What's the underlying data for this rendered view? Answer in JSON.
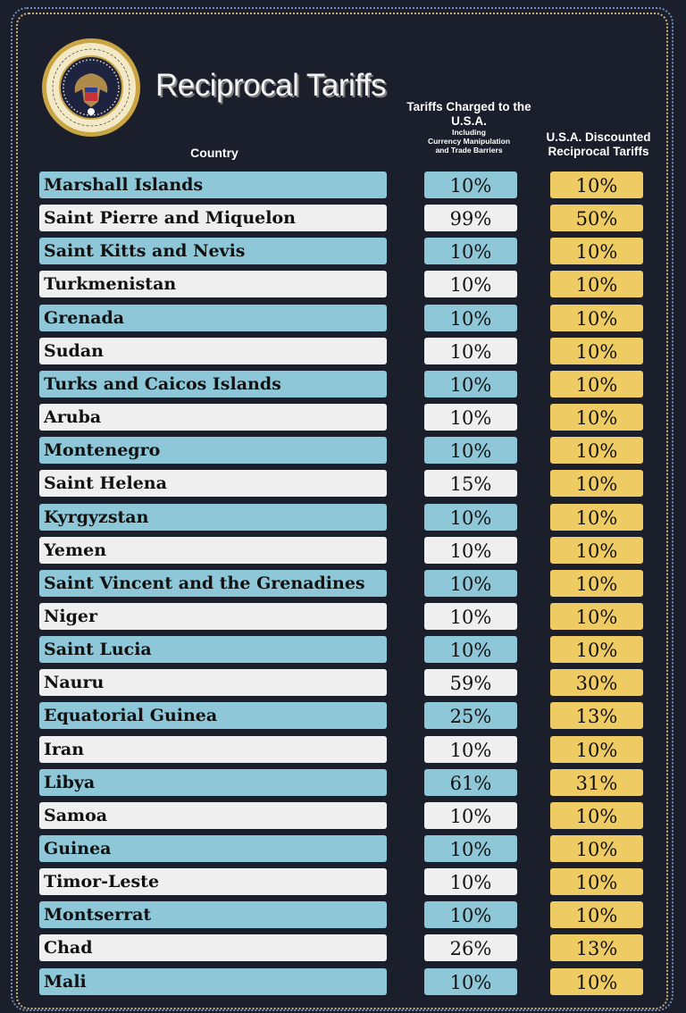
{
  "title": "Reciprocal Tariffs",
  "seal_text": "SEAL OF THE PRESIDENT OF THE UNITED STATES",
  "headers": {
    "country": "Country",
    "charged_main": "Tariffs Charged to the U.S.A.",
    "charged_sub1": "Including",
    "charged_sub2": "Currency Manipulation",
    "charged_sub3": "and Trade Barriers",
    "discounted": "U.S.A. Discounted Reciprocal Tariffs"
  },
  "colors": {
    "background": "#1b1f2c",
    "row_blue": "#8ec8d8",
    "row_white": "#efefef",
    "discount_yellow": "#efcb63"
  },
  "rows": [
    {
      "country": "Marshall Islands",
      "charged": "10%",
      "discounted": "10%"
    },
    {
      "country": "Saint Pierre and Miquelon",
      "charged": "99%",
      "discounted": "50%"
    },
    {
      "country": "Saint Kitts and Nevis",
      "charged": "10%",
      "discounted": "10%"
    },
    {
      "country": "Turkmenistan",
      "charged": "10%",
      "discounted": "10%"
    },
    {
      "country": "Grenada",
      "charged": "10%",
      "discounted": "10%"
    },
    {
      "country": "Sudan",
      "charged": "10%",
      "discounted": "10%"
    },
    {
      "country": "Turks and Caicos Islands",
      "charged": "10%",
      "discounted": "10%"
    },
    {
      "country": "Aruba",
      "charged": "10%",
      "discounted": "10%"
    },
    {
      "country": "Montenegro",
      "charged": "10%",
      "discounted": "10%"
    },
    {
      "country": "Saint Helena",
      "charged": "15%",
      "discounted": "10%"
    },
    {
      "country": "Kyrgyzstan",
      "charged": "10%",
      "discounted": "10%"
    },
    {
      "country": "Yemen",
      "charged": "10%",
      "discounted": "10%"
    },
    {
      "country": "Saint Vincent and the Grenadines",
      "charged": "10%",
      "discounted": "10%"
    },
    {
      "country": "Niger",
      "charged": "10%",
      "discounted": "10%"
    },
    {
      "country": "Saint Lucia",
      "charged": "10%",
      "discounted": "10%"
    },
    {
      "country": "Nauru",
      "charged": "59%",
      "discounted": "30%"
    },
    {
      "country": "Equatorial Guinea",
      "charged": "25%",
      "discounted": "13%"
    },
    {
      "country": "Iran",
      "charged": "10%",
      "discounted": "10%"
    },
    {
      "country": "Libya",
      "charged": "61%",
      "discounted": "31%"
    },
    {
      "country": "Samoa",
      "charged": "10%",
      "discounted": "10%"
    },
    {
      "country": "Guinea",
      "charged": "10%",
      "discounted": "10%"
    },
    {
      "country": "Timor-Leste",
      "charged": "10%",
      "discounted": "10%"
    },
    {
      "country": "Montserrat",
      "charged": "10%",
      "discounted": "10%"
    },
    {
      "country": "Chad",
      "charged": "26%",
      "discounted": "13%"
    },
    {
      "country": "Mali",
      "charged": "10%",
      "discounted": "10%"
    }
  ]
}
